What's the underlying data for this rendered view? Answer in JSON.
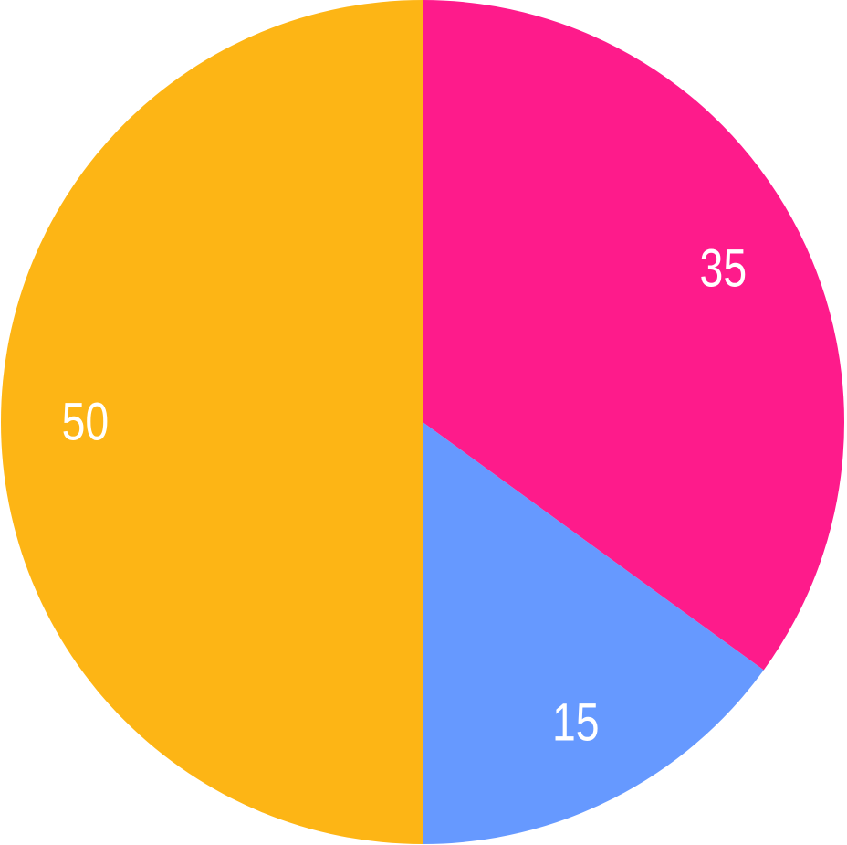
{
  "chart_data": {
    "type": "pie",
    "start_angle": "top",
    "direction": "clockwise",
    "slices": [
      {
        "value": 35,
        "label": "35",
        "color": "#FE1B8B"
      },
      {
        "value": 15,
        "label": "15",
        "color": "#6699FF"
      },
      {
        "value": 50,
        "label": "50",
        "color": "#FDB515"
      }
    ],
    "label_color": "#FFFFFF",
    "legend": "none"
  }
}
